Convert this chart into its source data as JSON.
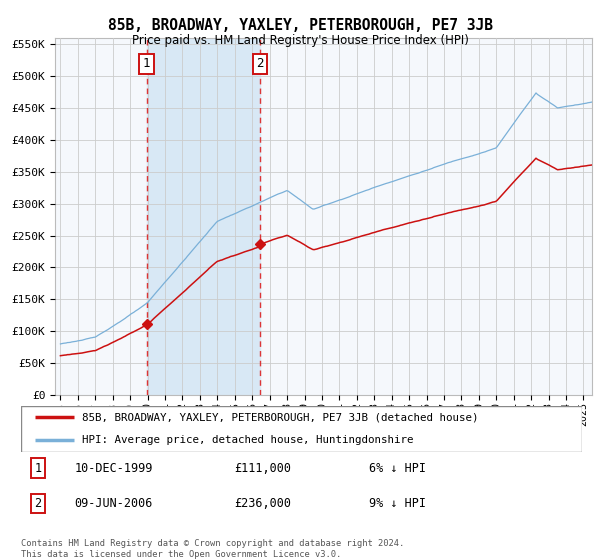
{
  "title": "85B, BROADWAY, YAXLEY, PETERBOROUGH, PE7 3JB",
  "subtitle": "Price paid vs. HM Land Registry's House Price Index (HPI)",
  "ylim": [
    0,
    560000
  ],
  "yticks": [
    0,
    50000,
    100000,
    150000,
    200000,
    250000,
    300000,
    350000,
    400000,
    450000,
    500000,
    550000
  ],
  "xlim_start": 1994.7,
  "xlim_end": 2025.5,
  "hpi_color": "#7ab0d8",
  "price_color": "#cc1111",
  "vline_color": "#dd2222",
  "shade_color": "#d8e8f5",
  "grid_color": "#cccccc",
  "plot_bg_color": "#f5f8fc",
  "sale1_x": 1999.94,
  "sale1_y": 111000,
  "sale2_x": 2006.44,
  "sale2_y": 236000,
  "legend_label_price": "85B, BROADWAY, YAXLEY, PETERBOROUGH, PE7 3JB (detached house)",
  "legend_label_hpi": "HPI: Average price, detached house, Huntingdonshire",
  "annotation1_date": "10-DEC-1999",
  "annotation1_price": "£111,000",
  "annotation1_hpi": "6% ↓ HPI",
  "annotation2_date": "09-JUN-2006",
  "annotation2_price": "£236,000",
  "annotation2_hpi": "9% ↓ HPI",
  "footer": "Contains HM Land Registry data © Crown copyright and database right 2024.\nThis data is licensed under the Open Government Licence v3.0."
}
